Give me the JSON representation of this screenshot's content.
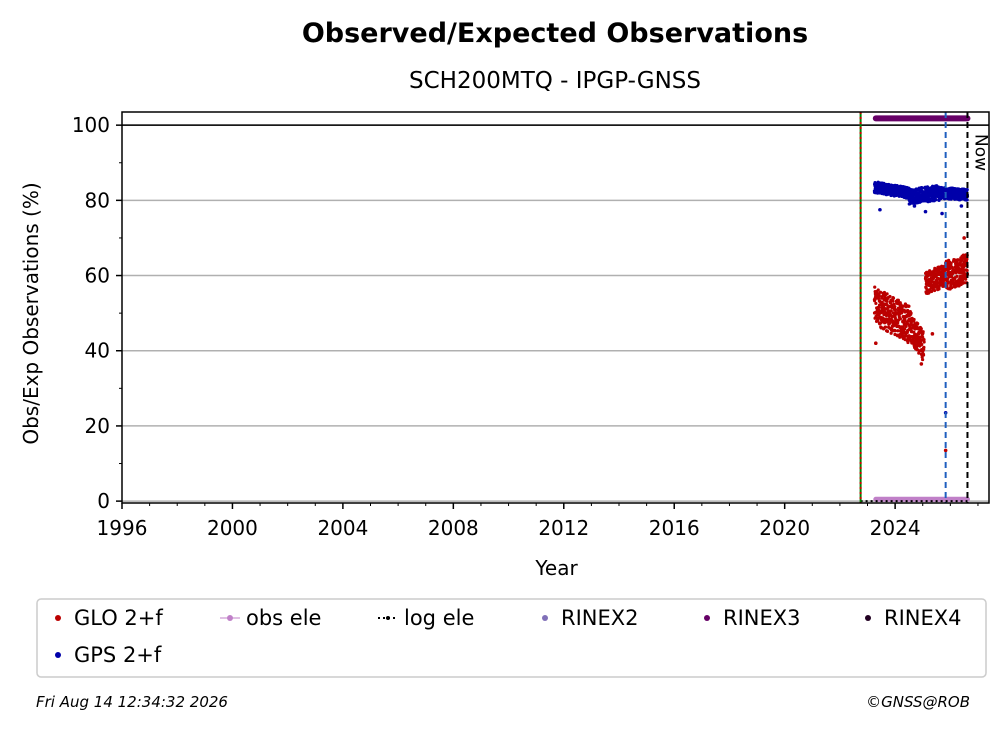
{
  "chart_data": {
    "type": "scatter",
    "title": "Observed/Expected Observations",
    "subtitle": "SCH200MTQ - IPGP-GNSS",
    "xlabel": "Year",
    "ylabel": "Obs/Exp Observations (%)",
    "xlim": [
      1996,
      2027.4
    ],
    "ylim": [
      -0.5,
      103.5
    ],
    "x_ticks": [
      1996,
      2000,
      2004,
      2008,
      2012,
      2016,
      2020,
      2024
    ],
    "x_tick_labels": [
      "1996",
      "2000",
      "2004",
      "2008",
      "2012",
      "2016",
      "2020",
      "2024"
    ],
    "y_ticks": [
      0,
      20,
      40,
      60,
      80,
      100
    ],
    "y_tick_labels": [
      "0",
      "20",
      "40",
      "60",
      "80",
      "100"
    ],
    "grid": "horizontal",
    "reference_line_y": 100,
    "vertical_lines": [
      {
        "x": 2022.75,
        "style": "dotted",
        "colors": [
          "#008000",
          "#cc0000"
        ]
      },
      {
        "x": 2025.83,
        "style": "dashed",
        "colors": [
          "#1f5fbf"
        ]
      },
      {
        "x": 2026.62,
        "style": "dashed",
        "colors": [
          "#000000"
        ],
        "label": "Now"
      }
    ],
    "series": [
      {
        "name": "GLO 2+f",
        "color": "#bb0000",
        "marker": "dot",
        "segments": [
          {
            "x_start": 2023.25,
            "x_end": 2024.5,
            "y_start": 52,
            "y_end": 47,
            "spread": 5
          },
          {
            "x_start": 2024.5,
            "x_end": 2025.05,
            "y_start": 47,
            "y_end": 41,
            "spread": 4
          },
          {
            "x_start": 2025.1,
            "x_end": 2025.83,
            "y_start": 58,
            "y_end": 60,
            "spread": 3
          },
          {
            "x_start": 2025.83,
            "x_end": 2026.62,
            "y_start": 60,
            "y_end": 62,
            "spread": 4
          }
        ],
        "outliers": [
          [
            2023.3,
            42
          ],
          [
            2024.95,
            36.5
          ],
          [
            2025.35,
            44.5
          ],
          [
            2025.83,
            13.5
          ],
          [
            2026.5,
            70
          ]
        ]
      },
      {
        "name": "GPS 2+f",
        "color": "#0000aa",
        "marker": "dot",
        "segments": [
          {
            "x_start": 2023.25,
            "x_end": 2024.5,
            "y_start": 83.5,
            "y_end": 82,
            "spread": 1.5
          },
          {
            "x_start": 2024.5,
            "x_end": 2025.6,
            "y_start": 81,
            "y_end": 82,
            "spread": 2
          },
          {
            "x_start": 2025.6,
            "x_end": 2026.62,
            "y_start": 82,
            "y_end": 81.5,
            "spread": 1.5
          }
        ],
        "outliers": [
          [
            2023.45,
            77.5
          ],
          [
            2024.7,
            78.5
          ],
          [
            2025.1,
            77
          ],
          [
            2025.7,
            76.5
          ],
          [
            2025.83,
            23.5
          ],
          [
            2026.4,
            78.5
          ]
        ]
      },
      {
        "name": "obs ele",
        "color": "#c080c8",
        "marker": "line-dot",
        "segments": [
          {
            "x_start": 2023.3,
            "x_end": 2026.62,
            "y_start": 0.5,
            "y_end": 0.5,
            "spread": 0
          }
        ]
      },
      {
        "name": "log ele",
        "color": "#000000",
        "marker": "dotted-line",
        "segments": [
          {
            "x_start": 2022.75,
            "x_end": 2026.62,
            "y_start": 0,
            "y_end": 0,
            "spread": 0
          }
        ]
      },
      {
        "name": "RINEX2",
        "color": "#8070b8",
        "marker": "dot",
        "segments": []
      },
      {
        "name": "RINEX3",
        "color": "#660066",
        "marker": "dot",
        "segments": [
          {
            "x_start": 2023.3,
            "x_end": 2026.62,
            "y_start": 101.8,
            "y_end": 101.8,
            "spread": 0
          }
        ]
      },
      {
        "name": "RINEX4",
        "color": "#220022",
        "marker": "dot",
        "segments": []
      }
    ],
    "legend": {
      "placement": "bottom",
      "entries": [
        {
          "label": "GLO 2+f",
          "color": "#bb0000",
          "marker": "dot"
        },
        {
          "label": "obs ele",
          "color": "#c080c8",
          "marker": "line-dot"
        },
        {
          "label": "log ele",
          "color": "#000000",
          "marker": "dotted-line"
        },
        {
          "label": "RINEX2",
          "color": "#8070b8",
          "marker": "dot"
        },
        {
          "label": "RINEX3",
          "color": "#660066",
          "marker": "dot"
        },
        {
          "label": "RINEX4",
          "color": "#220022",
          "marker": "dot"
        },
        {
          "label": "GPS 2+f",
          "color": "#0000aa",
          "marker": "dot"
        }
      ]
    }
  },
  "footer": {
    "timestamp": "Fri Aug 14 12:34:32 2026",
    "credit": "©GNSS@ROB"
  }
}
